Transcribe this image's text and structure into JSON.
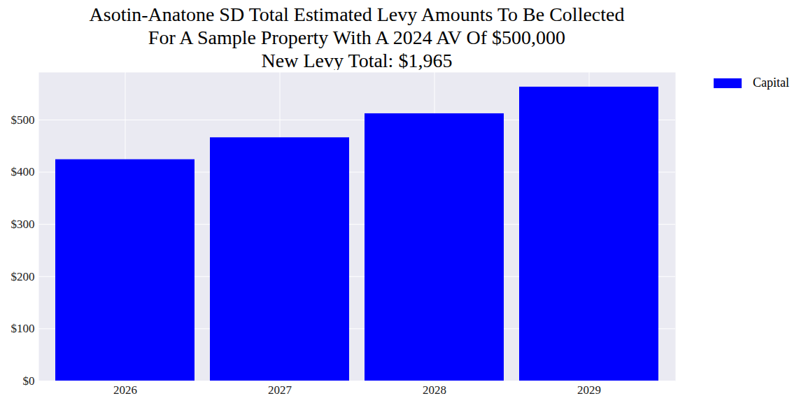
{
  "chart_data": {
    "type": "bar",
    "title": [
      "Asotin-Anatone SD Total Estimated Levy Amounts To Be Collected",
      "For A Sample Property With A 2024 AV Of $500,000",
      "New Levy Total: $1,965"
    ],
    "categories": [
      "2026",
      "2027",
      "2028",
      "2029"
    ],
    "series": [
      {
        "name": "Capital",
        "color": "#0000ff",
        "values": [
          424,
          466,
          512,
          563
        ]
      }
    ],
    "ylim": [
      0,
      591
    ],
    "yticks": [
      {
        "value": 0,
        "label": "$0"
      },
      {
        "value": 100,
        "label": "$100"
      },
      {
        "value": 200,
        "label": "$200"
      },
      {
        "value": 300,
        "label": "$300"
      },
      {
        "value": 400,
        "label": "$400"
      },
      {
        "value": 500,
        "label": "$500"
      }
    ],
    "grid": true,
    "legend": "upper right"
  }
}
